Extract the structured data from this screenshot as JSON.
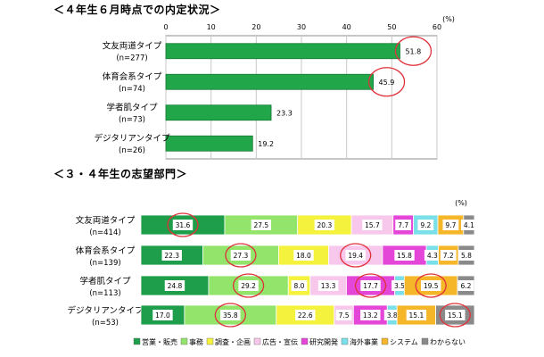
{
  "chart_data": [
    {
      "type": "bar",
      "orientation": "horizontal",
      "title": "＜４年生６月時点での内定状況＞",
      "unit_label": "(%)",
      "xlim": [
        0,
        60
      ],
      "ticks": [
        "0",
        "10",
        "20",
        "30",
        "40",
        "50",
        "60"
      ],
      "grid": true,
      "categories": [
        {
          "name": "文友両道タイプ",
          "n": "(n=277)"
        },
        {
          "name": "体育会系タイプ",
          "n": "(n=74)"
        },
        {
          "name": "学者肌タイプ",
          "n": "(n=73)"
        },
        {
          "name": "デジタリアンタイプ",
          "n": "(n=26)"
        }
      ],
      "values": [
        51.8,
        45.9,
        23.3,
        19.2
      ],
      "value_labels": [
        "51.8",
        "45.9",
        "23.3",
        "19.2"
      ],
      "highlighted": [
        0,
        1
      ],
      "color": "#22a64a"
    },
    {
      "type": "bar",
      "orientation": "horizontal",
      "stacked": true,
      "title": "＜３・４年生の志望部門＞",
      "unit_label": "(%)",
      "categories": [
        {
          "name": "文友両道タイプ",
          "n": "(n=414)"
        },
        {
          "name": "体育会系タイプ",
          "n": "(n=139)"
        },
        {
          "name": "学者肌タイプ",
          "n": "(n=113)"
        },
        {
          "name": "デジタリアンタイプ",
          "n": "(n=53)"
        }
      ],
      "series": [
        {
          "name": "営業・販売",
          "color": "#1e9e4a",
          "values": [
            31.6,
            22.3,
            24.8,
            17.0
          ]
        },
        {
          "name": "事務",
          "color": "#92e46b",
          "values": [
            27.5,
            27.3,
            29.2,
            35.8
          ]
        },
        {
          "name": "調査・企画",
          "color": "#f4f23c",
          "values": [
            20.3,
            18.0,
            8.0,
            22.6
          ]
        },
        {
          "name": "広告・宣伝",
          "color": "#f8c8ec",
          "values": [
            15.7,
            19.4,
            13.3,
            7.5
          ]
        },
        {
          "name": "研究開発",
          "color": "#e447d8",
          "values": [
            7.7,
            15.8,
            17.7,
            13.2
          ]
        },
        {
          "name": "海外事業",
          "color": "#79dfe8",
          "values": [
            9.2,
            4.3,
            3.5,
            3.8
          ]
        },
        {
          "name": "システム",
          "color": "#f6b62a",
          "values": [
            9.7,
            7.2,
            19.5,
            15.1
          ]
        },
        {
          "name": "わからない",
          "color": "#8a8a8a",
          "values": [
            4.1,
            5.8,
            6.2,
            15.1
          ]
        }
      ],
      "value_labels": [
        [
          "31.6",
          "27.5",
          "20.3",
          "15.7",
          "7.7",
          "9.2",
          "9.7",
          "4.1"
        ],
        [
          "22.3",
          "27.3",
          "18.0",
          "19.4",
          "15.8",
          "4.3",
          "7.2",
          "5.8"
        ],
        [
          "24.8",
          "29.2",
          "8.0",
          "13.3",
          "17.7",
          "3.5",
          "19.5",
          "6.2"
        ],
        [
          "17.0",
          "35.8",
          "22.6",
          "7.5",
          "13.2",
          "3.8",
          "15.1",
          "15.1"
        ]
      ],
      "highlighted": [
        [
          0,
          0
        ],
        [
          1,
          1
        ],
        [
          1,
          3
        ],
        [
          2,
          1
        ],
        [
          2,
          4
        ],
        [
          2,
          6
        ],
        [
          3,
          1
        ],
        [
          3,
          7
        ]
      ],
      "legend": "bottom"
    }
  ]
}
